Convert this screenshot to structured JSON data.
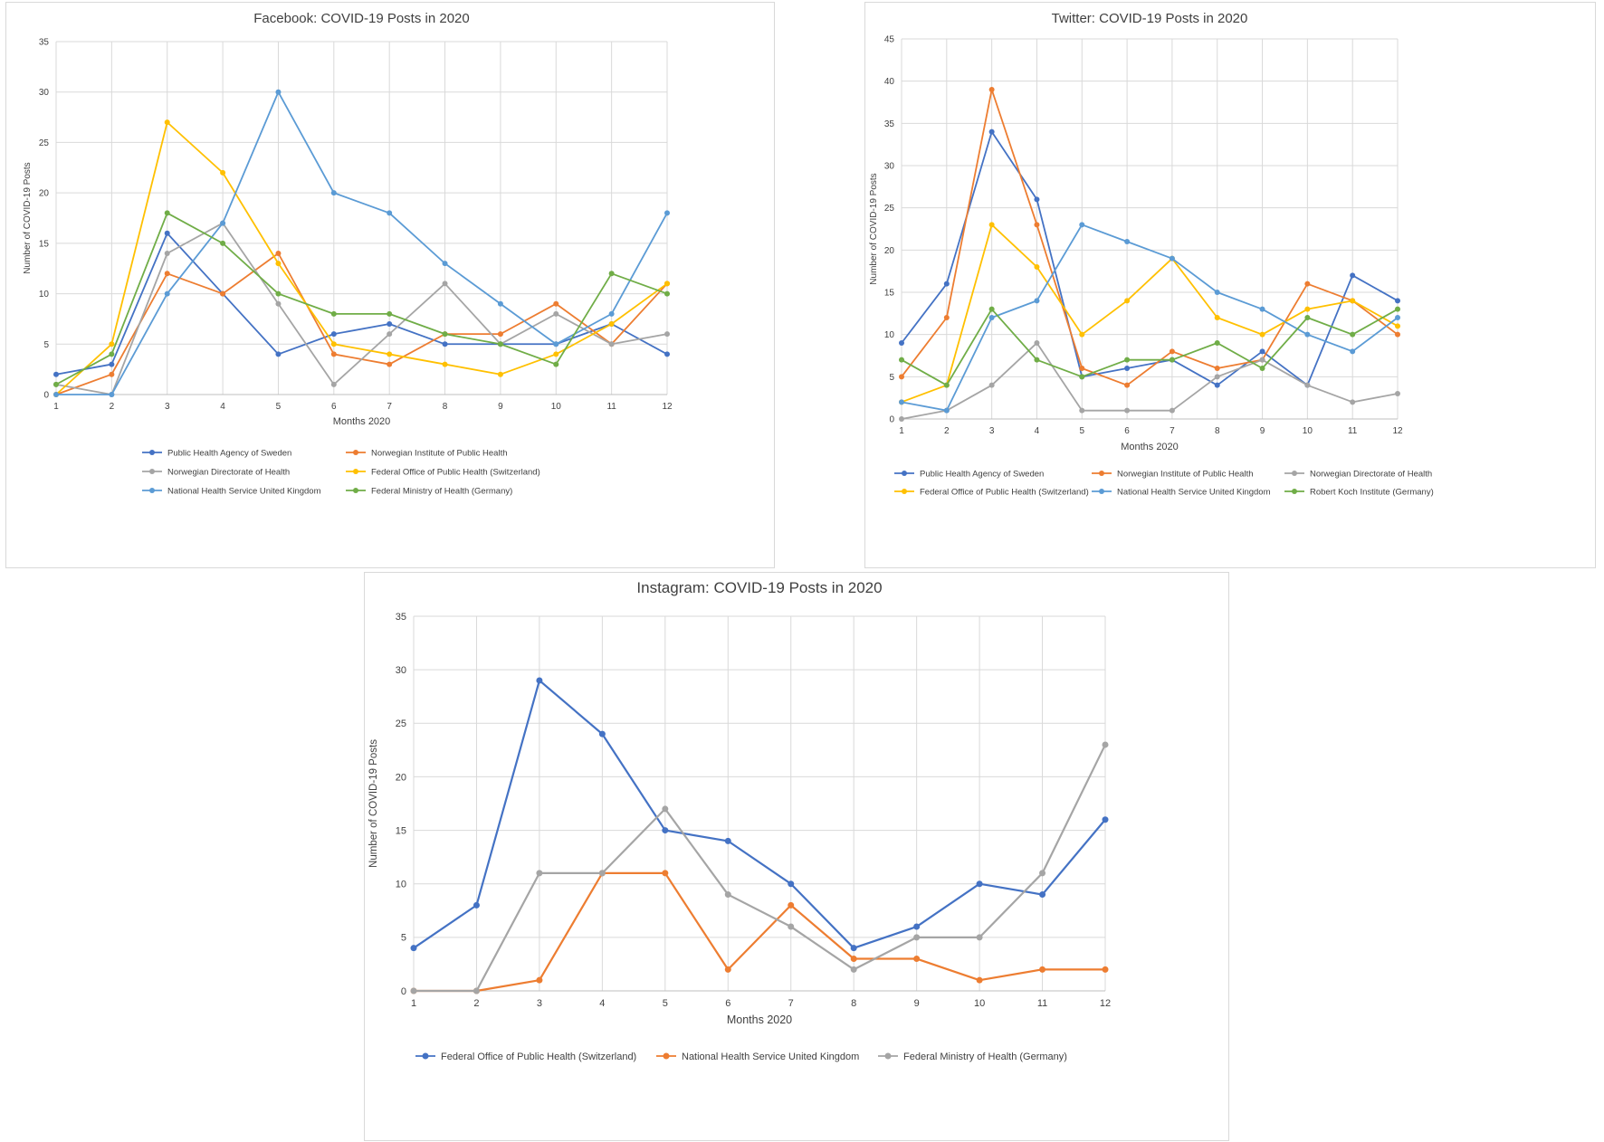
{
  "colors": {
    "blue_dark": "#4472C4",
    "orange": "#ED7D31",
    "gray": "#A5A5A5",
    "yellow": "#FFC000",
    "blue_light": "#5B9BD5",
    "green": "#70AD47"
  },
  "chart_data": [
    {
      "id": "facebook",
      "type": "line",
      "title": "Facebook: COVID-19 Posts in 2020",
      "xlabel": "Months 2020",
      "ylabel": "Number of COVID-19 Posts",
      "x": [
        1,
        2,
        3,
        4,
        5,
        6,
        7,
        8,
        9,
        10,
        11,
        12
      ],
      "ylim": [
        0,
        35
      ],
      "yticks": [
        0,
        5,
        10,
        15,
        20,
        25,
        30,
        35
      ],
      "legend_position": "bottom",
      "series": [
        {
          "name": "Public Health Agency of Sweden",
          "color": "#4472C4",
          "values": [
            2,
            3,
            16,
            10,
            4,
            6,
            7,
            5,
            5,
            5,
            7,
            4
          ]
        },
        {
          "name": "Norwegian Institute of Public Health",
          "color": "#ED7D31",
          "values": [
            0,
            2,
            12,
            10,
            14,
            4,
            3,
            6,
            6,
            9,
            5,
            11
          ]
        },
        {
          "name": "Norwegian Directorate of Health",
          "color": "#A5A5A5",
          "values": [
            1,
            0,
            14,
            17,
            9,
            1,
            6,
            11,
            5,
            8,
            5,
            6
          ]
        },
        {
          "name": "Federal Office of Public Health (Switzerland)",
          "color": "#FFC000",
          "values": [
            0,
            5,
            27,
            22,
            13,
            5,
            4,
            3,
            2,
            4,
            7,
            11
          ]
        },
        {
          "name": "National Health Service United Kingdom",
          "color": "#5B9BD5",
          "values": [
            0,
            0,
            10,
            17,
            30,
            20,
            18,
            13,
            9,
            5,
            8,
            18
          ]
        },
        {
          "name": "Federal Ministry of Health (Germany)",
          "color": "#70AD47",
          "values": [
            1,
            4,
            18,
            15,
            10,
            8,
            8,
            6,
            5,
            3,
            12,
            10
          ]
        }
      ]
    },
    {
      "id": "twitter",
      "type": "line",
      "title": "Twitter: COVID-19 Posts in 2020",
      "xlabel": "Months 2020",
      "ylabel": "Number of COVID-19 Posts",
      "x": [
        1,
        2,
        3,
        4,
        5,
        6,
        7,
        8,
        9,
        10,
        11,
        12
      ],
      "ylim": [
        0,
        45
      ],
      "yticks": [
        0,
        5,
        10,
        15,
        20,
        25,
        30,
        35,
        40,
        45
      ],
      "legend_position": "bottom",
      "series": [
        {
          "name": "Public Health Agency of Sweden",
          "color": "#4472C4",
          "values": [
            9,
            16,
            34,
            26,
            5,
            6,
            7,
            4,
            8,
            4,
            17,
            14
          ]
        },
        {
          "name": "Norwegian Institute of Public Health",
          "color": "#ED7D31",
          "values": [
            5,
            12,
            39,
            23,
            6,
            4,
            8,
            6,
            7,
            16,
            14,
            10
          ]
        },
        {
          "name": "Norwegian Directorate of Health",
          "color": "#A5A5A5",
          "values": [
            0,
            1,
            4,
            9,
            1,
            1,
            1,
            5,
            7,
            4,
            2,
            3
          ]
        },
        {
          "name": "Federal Office of Public Health (Switzerland)",
          "color": "#FFC000",
          "values": [
            2,
            4,
            23,
            18,
            10,
            14,
            19,
            12,
            10,
            13,
            14,
            11
          ]
        },
        {
          "name": "National Health Service United Kingdom",
          "color": "#5B9BD5",
          "values": [
            2,
            1,
            12,
            14,
            23,
            21,
            19,
            15,
            13,
            10,
            8,
            12
          ]
        },
        {
          "name": "Robert Koch Institute (Germany)",
          "color": "#70AD47",
          "values": [
            7,
            4,
            13,
            7,
            5,
            7,
            7,
            9,
            6,
            12,
            10,
            13
          ]
        }
      ]
    },
    {
      "id": "instagram",
      "type": "line",
      "title": "Instagram: COVID-19 Posts in 2020",
      "xlabel": "Months 2020",
      "ylabel": "Number of COVID-19 Posts",
      "x": [
        1,
        2,
        3,
        4,
        5,
        6,
        7,
        8,
        9,
        10,
        11,
        12
      ],
      "ylim": [
        0,
        35
      ],
      "yticks": [
        0,
        5,
        10,
        15,
        20,
        25,
        30,
        35
      ],
      "legend_position": "bottom",
      "series": [
        {
          "name": "Federal Office of Public Health (Switzerland)",
          "color": "#4472C4",
          "values": [
            4,
            8,
            29,
            24,
            15,
            14,
            10,
            4,
            6,
            10,
            9,
            16
          ]
        },
        {
          "name": "National Health Service United Kingdom",
          "color": "#ED7D31",
          "values": [
            0,
            0,
            1,
            11,
            11,
            2,
            8,
            3,
            3,
            1,
            2,
            2
          ]
        },
        {
          "name": "Federal Ministry of Health (Germany)",
          "color": "#A5A5A5",
          "values": [
            0,
            0,
            11,
            11,
            17,
            9,
            6,
            2,
            5,
            5,
            11,
            23
          ]
        }
      ]
    }
  ]
}
